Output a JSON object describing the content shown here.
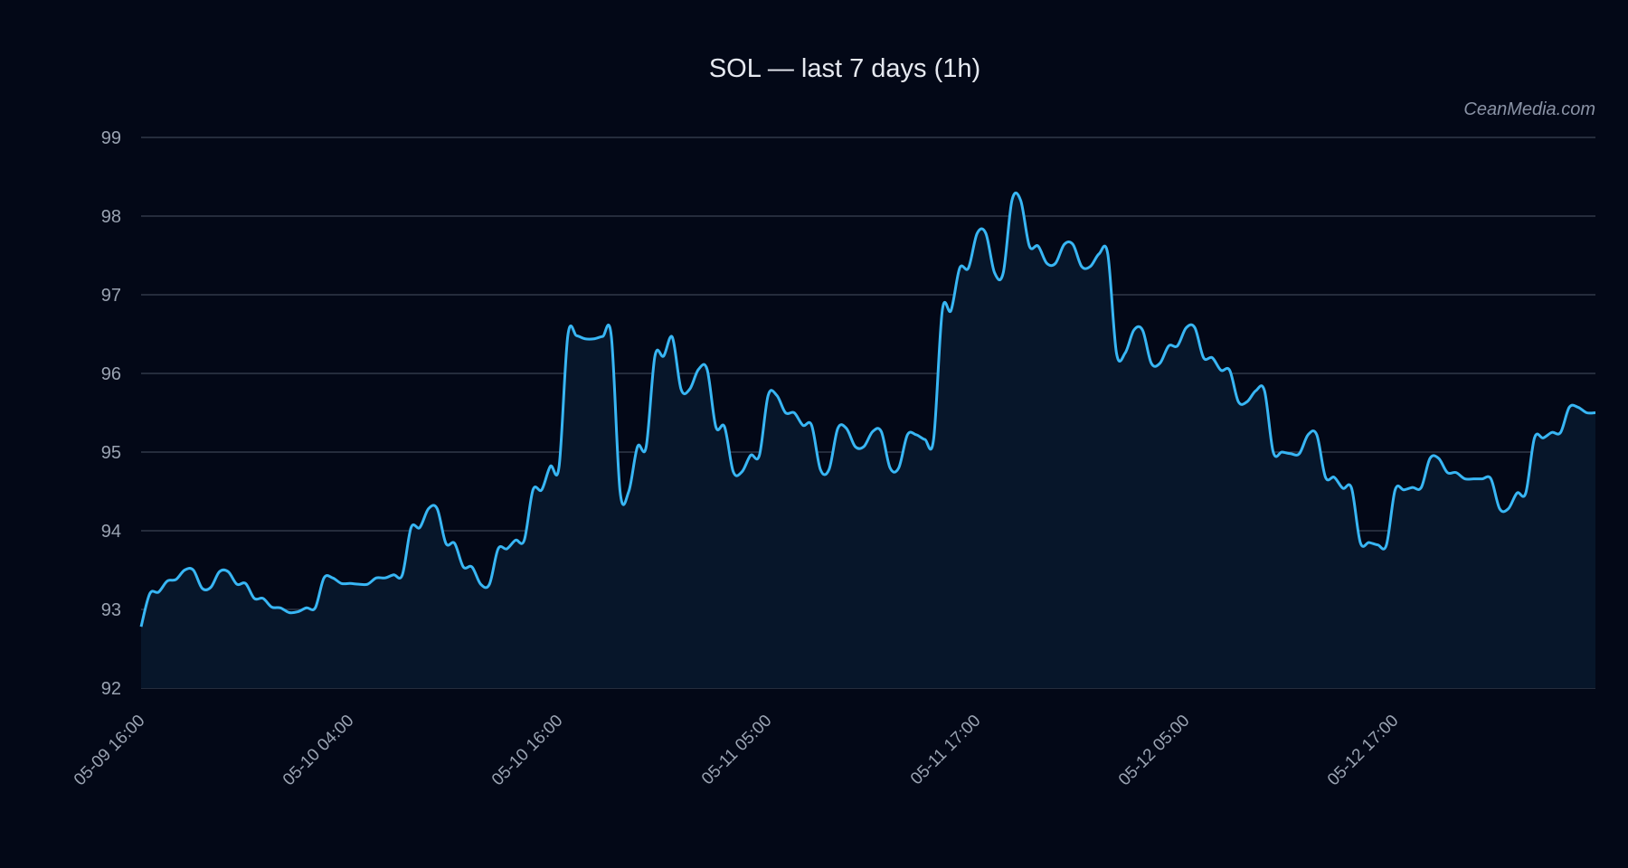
{
  "chart_data": {
    "type": "line",
    "title": "SOL — last 7 days (1h)",
    "watermark": "CeanMedia.com",
    "xlabel": "",
    "ylabel": "",
    "ylim": [
      92,
      99
    ],
    "y_ticks": [
      "92",
      "93",
      "94",
      "95",
      "96",
      "97",
      "98",
      "99"
    ],
    "x_ticks": [
      "05-09 16:00",
      "05-10 04:00",
      "05-10 16:00",
      "05-11 05:00",
      "05-11 17:00",
      "05-12 05:00",
      "05-12 17:00"
    ],
    "grid": true,
    "fill_area": true,
    "colors": {
      "background": "#030817",
      "line": "#38b6f4",
      "fill": "#07162a",
      "grid": "#3a4252"
    },
    "series": [
      {
        "values": [
          92.78,
          93.2,
          93.22,
          93.36,
          93.38,
          93.5,
          93.5,
          93.27,
          93.28,
          93.48,
          93.48,
          93.32,
          93.33,
          93.14,
          93.14,
          93.03,
          93.02,
          92.96,
          92.97,
          93.02,
          93.02,
          93.4,
          93.4,
          93.33,
          93.33,
          93.32,
          93.32,
          93.4,
          93.4,
          93.44,
          93.44,
          94.04,
          94.04,
          94.28,
          94.28,
          93.84,
          93.84,
          93.54,
          93.54,
          93.32,
          93.32,
          93.77,
          93.77,
          93.88,
          93.88,
          94.52,
          94.52,
          94.82,
          94.82,
          96.48,
          96.48,
          96.44,
          96.44,
          96.47,
          96.47,
          94.5,
          94.5,
          95.07,
          95.07,
          96.22,
          96.22,
          96.46,
          95.8,
          95.8,
          96.05,
          96.05,
          95.32,
          95.32,
          94.75,
          94.75,
          94.96,
          94.96,
          95.72,
          95.72,
          95.5,
          95.5,
          95.34,
          95.34,
          94.78,
          94.78,
          95.3,
          95.3,
          95.07,
          95.07,
          95.26,
          95.26,
          94.8,
          94.8,
          95.22,
          95.22,
          95.16,
          95.16,
          96.8,
          96.8,
          97.34,
          97.34,
          97.78,
          97.78,
          97.28,
          97.28,
          98.2,
          98.2,
          97.62,
          97.62,
          97.4,
          97.4,
          97.64,
          97.64,
          97.36,
          97.36,
          97.52,
          97.52,
          96.26,
          96.26,
          96.55,
          96.55,
          96.13,
          96.13,
          96.35,
          96.35,
          96.58,
          96.58,
          96.2,
          96.2,
          96.04,
          96.04,
          95.64,
          95.64,
          95.78,
          95.78,
          95.0,
          95.0,
          94.98,
          94.98,
          95.22,
          95.22,
          94.68,
          94.68,
          94.54,
          94.54,
          93.85,
          93.85,
          93.82,
          93.82,
          94.52,
          94.52,
          94.55,
          94.55,
          94.92,
          94.92,
          94.74,
          94.74,
          94.66,
          94.66,
          94.66,
          94.66,
          94.28,
          94.28,
          94.48,
          94.48,
          95.18,
          95.18,
          95.25,
          95.25,
          95.57,
          95.57,
          95.5,
          95.5
        ]
      }
    ]
  }
}
